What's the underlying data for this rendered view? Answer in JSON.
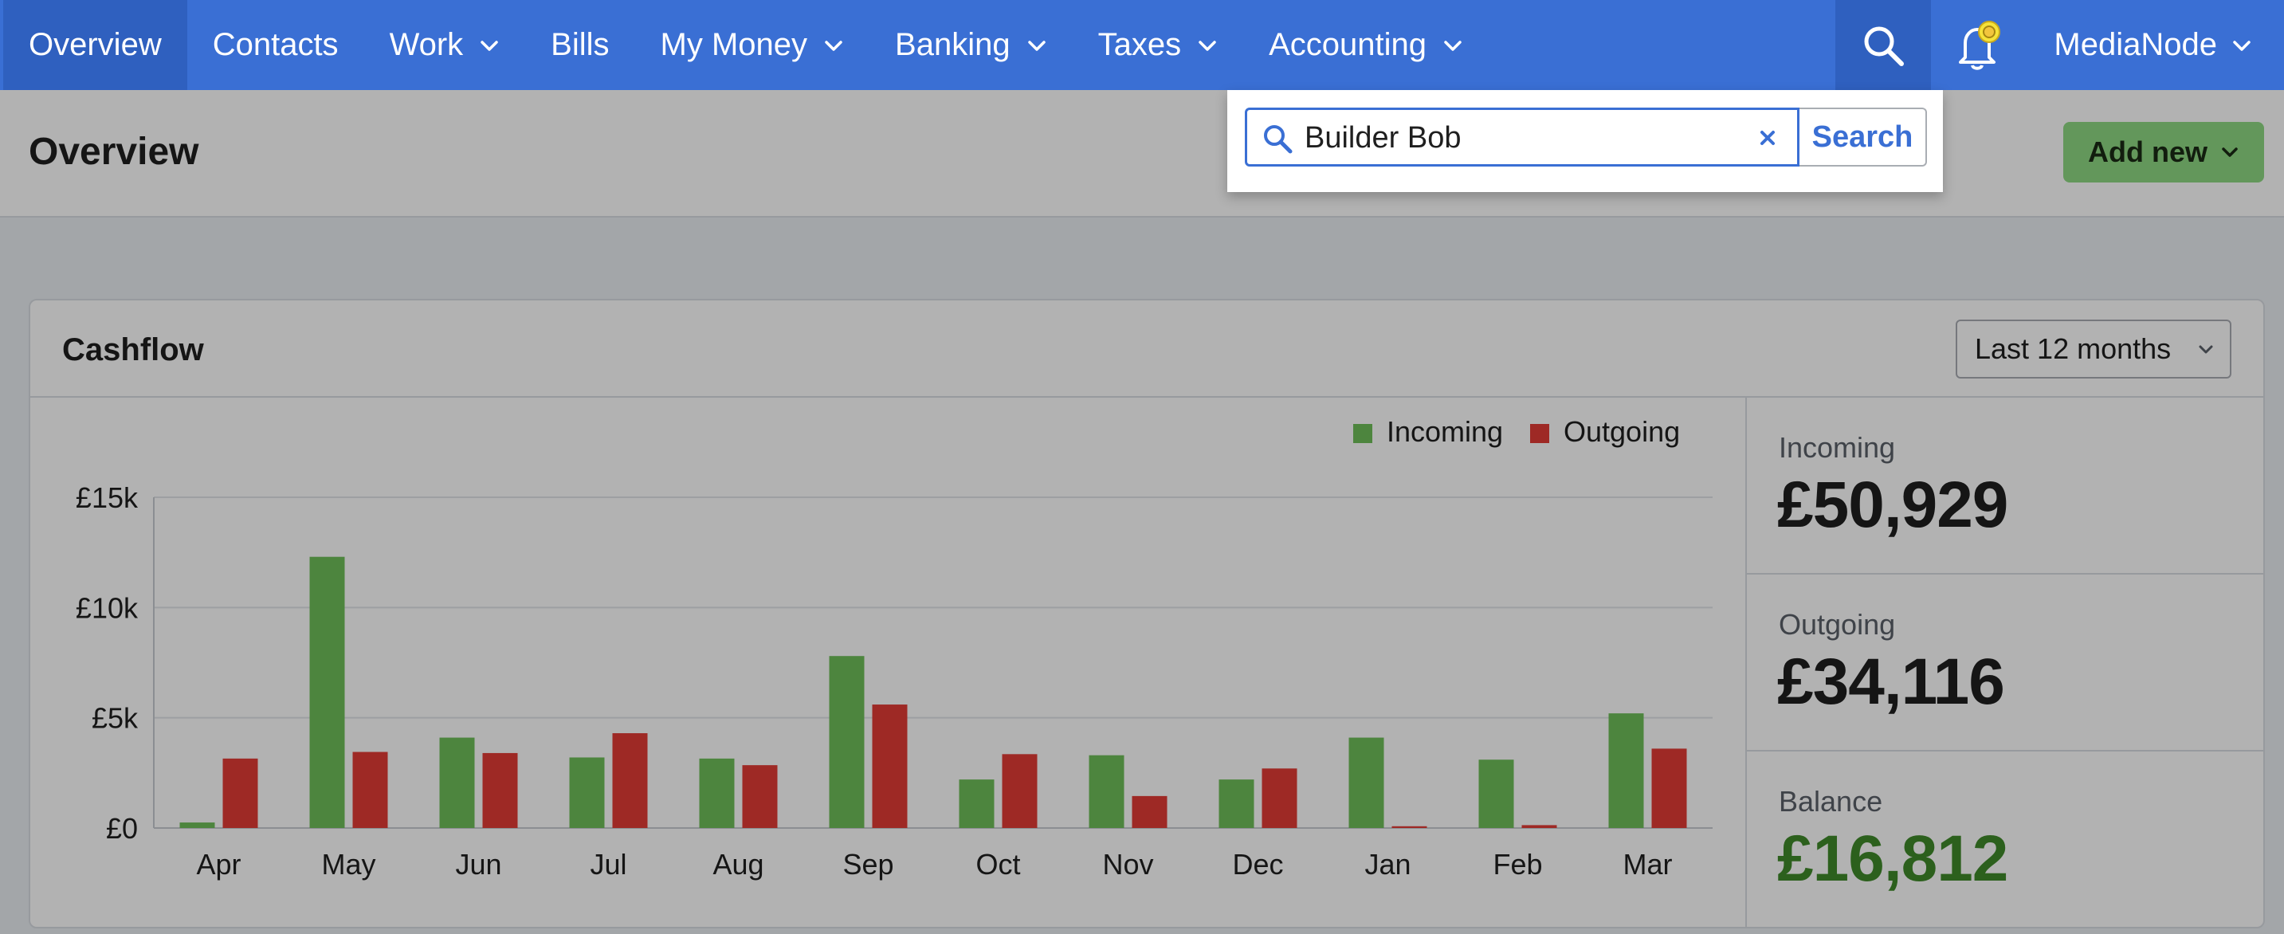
{
  "nav": {
    "items": [
      {
        "label": "Overview",
        "dropdown": false,
        "active": true
      },
      {
        "label": "Contacts",
        "dropdown": false
      },
      {
        "label": "Work",
        "dropdown": true
      },
      {
        "label": "Bills",
        "dropdown": false
      },
      {
        "label": "My Money",
        "dropdown": true
      },
      {
        "label": "Banking",
        "dropdown": true
      },
      {
        "label": "Taxes",
        "dropdown": true
      },
      {
        "label": "Accounting",
        "dropdown": true
      }
    ],
    "search_icon": "search-icon",
    "bell_icon": "notification-bell-icon",
    "user_label": "MediaNode"
  },
  "header": {
    "title": "Overview",
    "add_new_label": "Add new"
  },
  "search": {
    "value": "Builder Bob",
    "clear_icon": "close-icon",
    "submit_label": "Search"
  },
  "cashflow": {
    "title": "Cashflow",
    "period": "Last 12 months",
    "totals": {
      "incoming_label": "Incoming",
      "incoming_value": "£50,929",
      "outgoing_label": "Outgoing",
      "outgoing_value": "£34,116",
      "balance_label": "Balance",
      "balance_value": "£16,812"
    }
  },
  "colors": {
    "nav_bg": "#3a6fd4",
    "incoming": "#6fbf5a",
    "outgoing": "#e33b35",
    "add_new": "#8fd983",
    "balance_text": "#3f8a2a"
  },
  "chart_data": {
    "type": "bar",
    "categories": [
      "Apr",
      "May",
      "Jun",
      "Jul",
      "Aug",
      "Sep",
      "Oct",
      "Nov",
      "Dec",
      "Jan",
      "Feb",
      "Mar"
    ],
    "series": [
      {
        "name": "Incoming",
        "values": [
          250,
          12300,
          4100,
          3200,
          3150,
          7800,
          2200,
          3300,
          2200,
          4100,
          3100,
          5200
        ]
      },
      {
        "name": "Outgoing",
        "values": [
          3150,
          3450,
          3400,
          4300,
          2850,
          5600,
          3350,
          1450,
          2700,
          80,
          130,
          3600
        ]
      }
    ],
    "yticks": [
      "£0",
      "£5k",
      "£10k",
      "£15k"
    ],
    "ylim": [
      0,
      15000
    ],
    "grid": true,
    "legend": "top-right"
  }
}
